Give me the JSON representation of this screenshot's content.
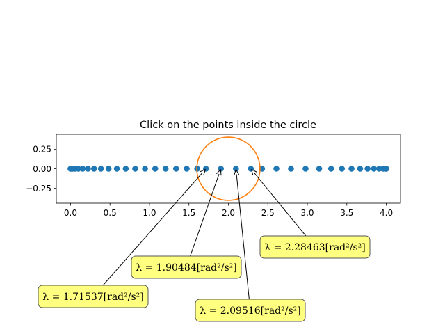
{
  "chart_data": {
    "type": "scatter",
    "title": "Click on the points inside the circle",
    "xlabel": "",
    "ylabel": "",
    "xlim": [
      -0.18,
      4.18
    ],
    "ylim": [
      -0.44,
      0.44
    ],
    "xticks": [
      "0.0",
      "0.5",
      "1.0",
      "1.5",
      "2.0",
      "2.5",
      "3.0",
      "3.5",
      "4.0"
    ],
    "yticks": [
      "0.25",
      "0.00",
      "−0.25"
    ],
    "point_color": "#1f77b4",
    "circle_color": "#ff7f0e",
    "circle": {
      "center_x": 2.0,
      "center_y": 0.0,
      "radius": 0.4
    },
    "points": {
      "x": [
        0.0,
        0.0063,
        0.025,
        0.0561,
        0.0993,
        0.1543,
        0.2206,
        0.2978,
        0.3851,
        0.4818,
        0.5871,
        0.6998,
        0.8191,
        0.9437,
        1.0725,
        1.2043,
        1.3377,
        1.4716,
        1.6047,
        1.7154,
        1.9048,
        2.0952,
        2.2846,
        2.4257,
        2.6079,
        2.7925,
        2.9775,
        3.1494,
        3.3011,
        3.4374,
        3.5596,
        3.6681,
        3.7629,
        3.8435,
        3.9094,
        3.9607,
        3.9937,
        4.0
      ],
      "y": [
        0,
        0,
        0,
        0,
        0,
        0,
        0,
        0,
        0,
        0,
        0,
        0,
        0,
        0,
        0,
        0,
        0,
        0,
        0,
        0,
        0,
        0,
        0,
        0,
        0,
        0,
        0,
        0,
        0,
        0,
        0,
        0,
        0,
        0,
        0,
        0,
        0,
        0
      ]
    },
    "annotations": [
      {
        "text": "λ = 1.71537[rad²/s²]",
        "x": 1.71537,
        "y": 0.0
      },
      {
        "text": "λ = 1.90484[rad²/s²]",
        "x": 1.90484,
        "y": 0.0
      },
      {
        "text": "λ = 2.09516[rad²/s²]",
        "x": 2.09516,
        "y": 0.0
      },
      {
        "text": "λ = 2.28463[rad²/s²]",
        "x": 2.28463,
        "y": 0.0
      }
    ],
    "annotation_box_color": "#ffff80",
    "grid": false,
    "legend": "none"
  }
}
